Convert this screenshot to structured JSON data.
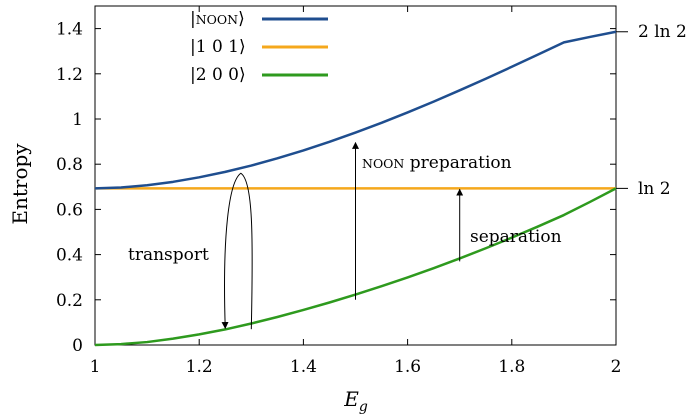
{
  "chart_data": {
    "type": "line",
    "xlabel": "E",
    "xlabel_sub": "g",
    "ylabel": "Entropy",
    "xlim": [
      1,
      2
    ],
    "ylim": [
      0,
      1.5
    ],
    "xticks": [
      1,
      1.2,
      1.4,
      1.6,
      1.8,
      2
    ],
    "xtick_labels": [
      "1",
      "1.2",
      "1.4",
      "1.6",
      "1.8",
      "2"
    ],
    "yticks": [
      0,
      0.2,
      0.4,
      0.6,
      0.8,
      1,
      1.2,
      1.4
    ],
    "ytick_labels": [
      "0",
      "0.2",
      "0.4",
      "0.6",
      "0.8",
      "1",
      "1.2",
      "1.4"
    ],
    "grid": false,
    "legend_position": "top-left",
    "series": [
      {
        "name": "|NOON⟩",
        "legend_parts": [
          "|",
          "NOON",
          "⟩"
        ],
        "color": "#1f4e8f",
        "x": [
          1.0,
          1.05,
          1.1,
          1.15,
          1.2,
          1.25,
          1.3,
          1.35,
          1.4,
          1.45,
          1.5,
          1.55,
          1.6,
          1.65,
          1.7,
          1.75,
          1.8,
          1.85,
          1.9,
          1.95,
          2.0
        ],
        "y": [
          0.693,
          0.697,
          0.707,
          0.722,
          0.742,
          0.766,
          0.794,
          0.826,
          0.861,
          0.899,
          0.94,
          0.983,
          1.029,
          1.077,
          1.127,
          1.178,
          1.231,
          1.285,
          1.339,
          1.363,
          1.386
        ]
      },
      {
        "name": "|1 0 1⟩",
        "legend_parts": [
          "|",
          "1 0 1",
          "⟩"
        ],
        "color": "#f5a81c",
        "x": [
          1.0,
          2.0
        ],
        "y": [
          0.693,
          0.693
        ]
      },
      {
        "name": "|2 0 0⟩",
        "legend_parts": [
          "|",
          "2 0 0",
          "⟩"
        ],
        "color": "#2e9a1e",
        "x": [
          1.0,
          1.05,
          1.1,
          1.15,
          1.2,
          1.25,
          1.3,
          1.35,
          1.4,
          1.45,
          1.5,
          1.55,
          1.6,
          1.65,
          1.7,
          1.75,
          1.8,
          1.85,
          1.9,
          1.95,
          2.0
        ],
        "y": [
          0.0,
          0.004,
          0.013,
          0.028,
          0.047,
          0.069,
          0.095,
          0.124,
          0.155,
          0.188,
          0.223,
          0.26,
          0.299,
          0.34,
          0.383,
          0.428,
          0.475,
          0.524,
          0.575,
          0.633,
          0.693
        ]
      }
    ],
    "right_labels": [
      {
        "text": "2 ln 2",
        "y": 1.386
      },
      {
        "text": "ln 2",
        "y": 0.693
      }
    ],
    "annotations": [
      {
        "text_parts": [
          "NOON",
          " preparation"
        ],
        "arrow_x": 1.5,
        "from_y": 0.2,
        "to_y": 0.9,
        "direction": "up"
      },
      {
        "text": "separation",
        "arrow_x": 1.7,
        "from_y": 0.37,
        "to_y": 0.693,
        "direction": "up"
      },
      {
        "text": "transport",
        "path": "loop from 1.3 at 0.07 up to peak 1.28 at 0.76 down to 1.25 at 0.06"
      }
    ]
  }
}
